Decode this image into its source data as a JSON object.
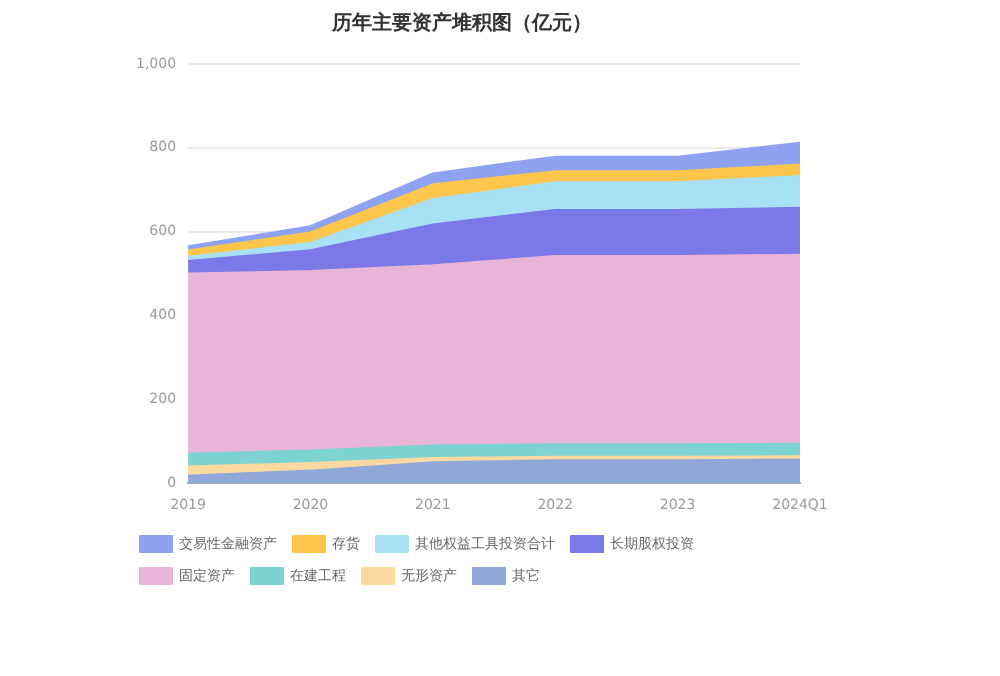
{
  "chart_data": {
    "type": "area",
    "title": "历年主要资产堆积图（亿元）",
    "stacked": true,
    "categories": [
      "2019",
      "2020",
      "2021",
      "2022",
      "2023",
      "2024Q1"
    ],
    "ylim": [
      0,
      1000
    ],
    "yticks": [
      0,
      200,
      400,
      600,
      800,
      {
        "value": 1000,
        "label": "1,000"
      }
    ],
    "grid": "y",
    "legend": "bottom",
    "series": [
      {
        "name": "其它",
        "color": "#8fa8d8",
        "values": [
          18,
          30,
          50,
          55,
          55,
          56
        ]
      },
      {
        "name": "无形资产",
        "color": "#fcd9a0",
        "values": [
          22,
          18,
          10,
          8,
          8,
          8
        ]
      },
      {
        "name": "在建工程",
        "color": "#7dd3cf",
        "values": [
          30,
          30,
          30,
          30,
          30,
          30
        ]
      },
      {
        "name": "固定资产",
        "color": "#e8b4d8",
        "values": [
          430,
          428,
          430,
          449,
          449,
          451
        ]
      },
      {
        "name": "长期股权投资",
        "color": "#7b78e8",
        "values": [
          30,
          50,
          97,
          110,
          110,
          112
        ]
      },
      {
        "name": "其他权益工具投资合计",
        "color": "#a8e0f5",
        "values": [
          10,
          17,
          61,
          66,
          66,
          76
        ]
      },
      {
        "name": "存货",
        "color": "#fcc64d",
        "values": [
          15,
          25,
          35,
          26,
          26,
          27
        ]
      },
      {
        "name": "交易性金融资产",
        "color": "#8fa2f2",
        "values": [
          10,
          15,
          26,
          35,
          35,
          52
        ]
      }
    ]
  }
}
